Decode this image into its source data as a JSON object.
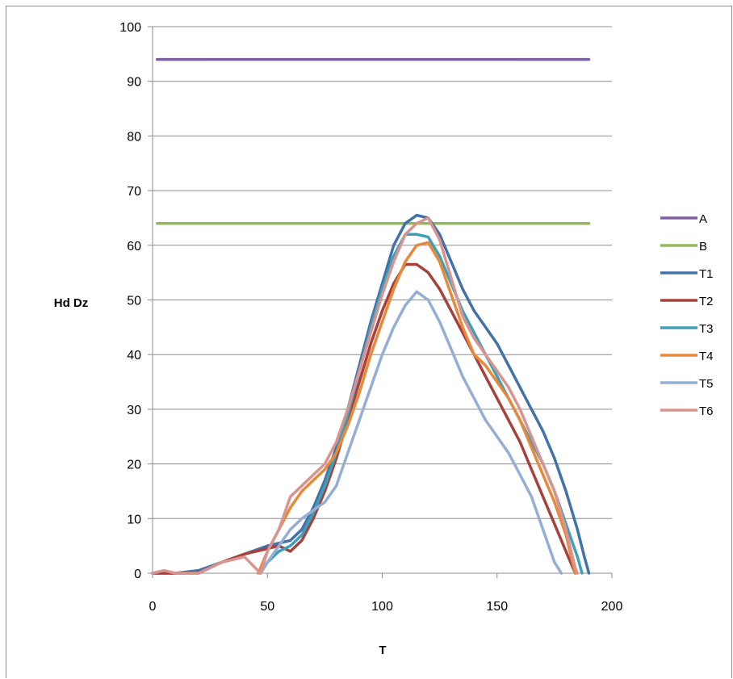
{
  "chart_data": {
    "type": "line",
    "title": "",
    "xlabel": "T",
    "ylabel": "Hd Dz",
    "xlim": [
      0,
      200
    ],
    "ylim": [
      0,
      100
    ],
    "xticks": [
      0,
      50,
      100,
      150,
      200
    ],
    "yticks": [
      0,
      10,
      20,
      30,
      40,
      50,
      60,
      70,
      80,
      90,
      100
    ],
    "grid": "horizontal",
    "legend_position": "right",
    "series": [
      {
        "name": "A",
        "color": "#7f5f9f",
        "points": [
          [
            2,
            94
          ],
          [
            190,
            94
          ]
        ]
      },
      {
        "name": "B",
        "color": "#93b85a",
        "points": [
          [
            2,
            64
          ],
          [
            190,
            64
          ]
        ]
      },
      {
        "name": "T1",
        "color": "#4472a8",
        "points": [
          [
            0,
            0
          ],
          [
            10,
            0
          ],
          [
            20,
            0.5
          ],
          [
            30,
            2
          ],
          [
            40,
            3.5
          ],
          [
            50,
            5
          ],
          [
            60,
            6
          ],
          [
            65,
            8
          ],
          [
            70,
            12
          ],
          [
            75,
            17
          ],
          [
            80,
            23
          ],
          [
            85,
            30
          ],
          [
            90,
            38
          ],
          [
            95,
            46
          ],
          [
            100,
            53
          ],
          [
            105,
            60
          ],
          [
            110,
            64
          ],
          [
            115,
            65.5
          ],
          [
            120,
            65
          ],
          [
            125,
            62
          ],
          [
            130,
            57
          ],
          [
            135,
            52
          ],
          [
            140,
            48
          ],
          [
            145,
            45
          ],
          [
            150,
            42
          ],
          [
            155,
            38
          ],
          [
            160,
            34
          ],
          [
            165,
            30
          ],
          [
            170,
            26
          ],
          [
            175,
            21
          ],
          [
            180,
            15
          ],
          [
            185,
            8
          ],
          [
            188,
            3
          ],
          [
            190,
            0
          ]
        ]
      },
      {
        "name": "T2",
        "color": "#a8403c",
        "points": [
          [
            0,
            0
          ],
          [
            10,
            0
          ],
          [
            20,
            0
          ],
          [
            30,
            2
          ],
          [
            40,
            3.5
          ],
          [
            50,
            4.5
          ],
          [
            55,
            5
          ],
          [
            60,
            4
          ],
          [
            65,
            6
          ],
          [
            70,
            10
          ],
          [
            75,
            15
          ],
          [
            80,
            21
          ],
          [
            85,
            28
          ],
          [
            90,
            35
          ],
          [
            95,
            42
          ],
          [
            100,
            48
          ],
          [
            105,
            53
          ],
          [
            110,
            56.5
          ],
          [
            115,
            56.5
          ],
          [
            120,
            55
          ],
          [
            125,
            52
          ],
          [
            130,
            48
          ],
          [
            135,
            44
          ],
          [
            140,
            40
          ],
          [
            145,
            36
          ],
          [
            150,
            32
          ],
          [
            155,
            28
          ],
          [
            160,
            24
          ],
          [
            165,
            19
          ],
          [
            170,
            14
          ],
          [
            175,
            9
          ],
          [
            180,
            4
          ],
          [
            184,
            0
          ]
        ]
      },
      {
        "name": "T3",
        "color": "#3ea0b8",
        "points": [
          [
            47,
            0
          ],
          [
            50,
            2
          ],
          [
            55,
            4
          ],
          [
            60,
            5
          ],
          [
            65,
            7
          ],
          [
            70,
            11
          ],
          [
            75,
            16
          ],
          [
            80,
            22
          ],
          [
            85,
            29
          ],
          [
            90,
            37
          ],
          [
            95,
            45
          ],
          [
            100,
            52
          ],
          [
            105,
            58
          ],
          [
            110,
            62
          ],
          [
            115,
            62
          ],
          [
            120,
            61.5
          ],
          [
            125,
            58
          ],
          [
            130,
            53
          ],
          [
            135,
            48
          ],
          [
            140,
            44
          ],
          [
            145,
            40
          ],
          [
            150,
            36
          ],
          [
            155,
            32
          ],
          [
            160,
            28
          ],
          [
            165,
            24
          ],
          [
            170,
            20
          ],
          [
            175,
            15
          ],
          [
            180,
            9
          ],
          [
            185,
            3
          ],
          [
            187,
            0
          ]
        ]
      },
      {
        "name": "T4",
        "color": "#e8893a",
        "points": [
          [
            46,
            0
          ],
          [
            50,
            4
          ],
          [
            55,
            8
          ],
          [
            60,
            12
          ],
          [
            65,
            15
          ],
          [
            70,
            17
          ],
          [
            75,
            19
          ],
          [
            80,
            22
          ],
          [
            85,
            27
          ],
          [
            90,
            33
          ],
          [
            95,
            40
          ],
          [
            100,
            46
          ],
          [
            105,
            52
          ],
          [
            110,
            57
          ],
          [
            115,
            60
          ],
          [
            120,
            60.5
          ],
          [
            125,
            57
          ],
          [
            130,
            51
          ],
          [
            135,
            45
          ],
          [
            140,
            40
          ],
          [
            145,
            38
          ],
          [
            150,
            35
          ],
          [
            155,
            32
          ],
          [
            160,
            28
          ],
          [
            165,
            23
          ],
          [
            170,
            18
          ],
          [
            175,
            13
          ],
          [
            180,
            7
          ],
          [
            184,
            0
          ]
        ]
      },
      {
        "name": "T5",
        "color": "#95aed3",
        "points": [
          [
            47,
            0
          ],
          [
            50,
            2
          ],
          [
            55,
            5
          ],
          [
            60,
            8
          ],
          [
            65,
            10
          ],
          [
            70,
            11.5
          ],
          [
            75,
            13
          ],
          [
            80,
            16
          ],
          [
            85,
            22
          ],
          [
            90,
            28
          ],
          [
            95,
            34
          ],
          [
            100,
            40
          ],
          [
            105,
            45
          ],
          [
            110,
            49
          ],
          [
            115,
            51.5
          ],
          [
            120,
            50
          ],
          [
            125,
            46
          ],
          [
            130,
            41
          ],
          [
            135,
            36
          ],
          [
            140,
            32
          ],
          [
            145,
            28
          ],
          [
            150,
            25
          ],
          [
            155,
            22
          ],
          [
            160,
            18
          ],
          [
            165,
            14
          ],
          [
            170,
            8
          ],
          [
            175,
            2
          ],
          [
            178,
            0
          ]
        ]
      },
      {
        "name": "T6",
        "color": "#d99390",
        "points": [
          [
            0,
            0
          ],
          [
            5,
            0.5
          ],
          [
            10,
            0
          ],
          [
            20,
            0
          ],
          [
            30,
            2
          ],
          [
            40,
            3
          ],
          [
            47,
            0
          ],
          [
            50,
            4
          ],
          [
            55,
            8
          ],
          [
            60,
            14
          ],
          [
            65,
            16
          ],
          [
            70,
            18
          ],
          [
            75,
            20
          ],
          [
            80,
            24
          ],
          [
            85,
            30
          ],
          [
            90,
            37
          ],
          [
            95,
            44
          ],
          [
            100,
            51
          ],
          [
            105,
            57
          ],
          [
            110,
            62
          ],
          [
            115,
            64
          ],
          [
            120,
            65
          ],
          [
            125,
            61
          ],
          [
            130,
            54
          ],
          [
            135,
            47
          ],
          [
            140,
            43
          ],
          [
            145,
            40
          ],
          [
            150,
            37
          ],
          [
            155,
            34
          ],
          [
            160,
            30
          ],
          [
            165,
            25
          ],
          [
            170,
            20
          ],
          [
            175,
            15
          ],
          [
            180,
            8
          ],
          [
            184,
            1
          ],
          [
            185,
            0
          ]
        ]
      }
    ]
  }
}
